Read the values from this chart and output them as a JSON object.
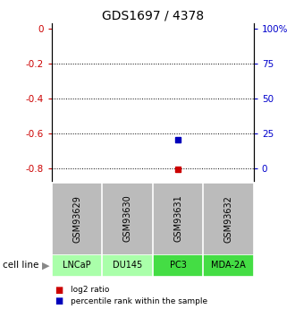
{
  "title": "GDS1697 / 4378",
  "samples": [
    "GSM93629",
    "GSM93630",
    "GSM93631",
    "GSM93632"
  ],
  "cell_lines": [
    "LNCaP",
    "DU145",
    "PC3",
    "MDA-2A"
  ],
  "cell_line_colors": [
    "#aaffaa",
    "#aaffaa",
    "#44dd44",
    "#44dd44"
  ],
  "log2_ratio_points": [
    {
      "sample_idx": 2,
      "value": -0.805
    }
  ],
  "percentile_points": [
    {
      "sample_idx": 2,
      "value": -0.635
    }
  ],
  "left_yticks": [
    0,
    -0.2,
    -0.4,
    -0.6,
    -0.8
  ],
  "right_yticks_values": [
    100,
    75,
    50,
    25,
    0
  ],
  "right_yticks_positions": [
    0,
    -0.2,
    -0.4,
    -0.6,
    -0.8
  ],
  "grid_lines": [
    -0.2,
    -0.4,
    -0.6,
    -0.8
  ],
  "left_tick_color": "#cc0000",
  "right_tick_color": "#0000cc",
  "title_fontsize": 10,
  "sample_box_color": "#bbbbbb",
  "marker_size": 4,
  "log2_marker_color": "#cc0000",
  "percentile_marker_color": "#0000bb",
  "legend_log2": "log2 ratio",
  "legend_pct": "percentile rank within the sample",
  "cell_line_label": "cell line"
}
